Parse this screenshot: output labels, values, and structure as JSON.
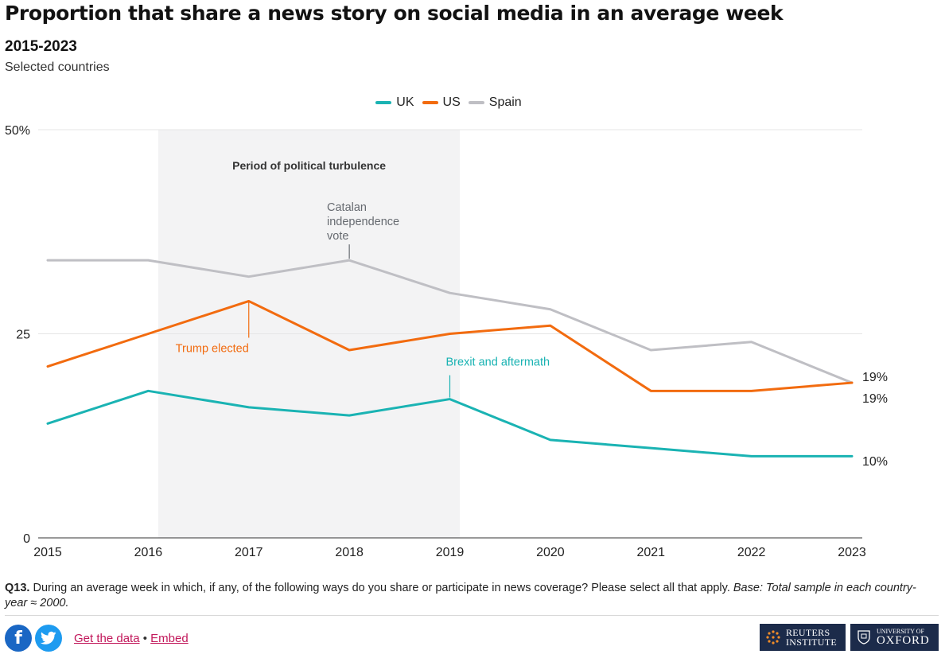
{
  "header": {
    "title": "Proportion that share a news story on social media in an average week",
    "subtitle": "2015-2023",
    "description": "Selected countries"
  },
  "chart_data": {
    "type": "line",
    "x": [
      "2015",
      "2016",
      "2017",
      "2018",
      "2019",
      "2020",
      "2021",
      "2022",
      "2023"
    ],
    "series": [
      {
        "name": "UK",
        "color": "#1ab3b3",
        "values": [
          14,
          18,
          16,
          15,
          17,
          12,
          11,
          10,
          10
        ]
      },
      {
        "name": "US",
        "color": "#f26b0f",
        "values": [
          21,
          25,
          29,
          23,
          25,
          26,
          18,
          18,
          19
        ]
      },
      {
        "name": "Spain",
        "color": "#bfbfc4",
        "values": [
          34,
          34,
          32,
          34,
          30,
          28,
          23,
          24,
          19
        ]
      }
    ],
    "ylim": [
      0,
      50
    ],
    "y_ticks": [
      {
        "value": 0,
        "label": "0"
      },
      {
        "value": 25,
        "label": "25"
      },
      {
        "value": 50,
        "label": "50%"
      }
    ],
    "end_labels": [
      {
        "series": "Spain",
        "label": "19%"
      },
      {
        "series": "US",
        "label": "19%"
      },
      {
        "series": "UK",
        "label": "10%"
      }
    ],
    "shaded_period": {
      "x_start": 2016.1,
      "x_end": 2019.1,
      "label": "Period of political turbulence"
    },
    "annotations": [
      {
        "series": "Spain",
        "x": "2018",
        "lines": [
          "Catalan",
          "independence",
          "vote"
        ],
        "color": "#666a70"
      },
      {
        "series": "US",
        "x": "2017",
        "lines": [
          "Trump elected"
        ],
        "color": "#f26b0f"
      },
      {
        "series": "UK",
        "x": "2019",
        "lines": [
          "Brexit and aftermath"
        ],
        "color": "#1ab3b3"
      }
    ],
    "grid": true,
    "legend_position": "top-center"
  },
  "footnote": {
    "label": "Q13.",
    "text": " During an average week in which, if any, of the following ways do you share or participate in news coverage? Please select all that apply. ",
    "base": "Base: Total sample in each country-year ≈ 2000."
  },
  "footer": {
    "facebook_glyph": "f",
    "get_data_label": "Get the data",
    "separator": " • ",
    "embed_label": "Embed",
    "logo_reuters": [
      "REUTERS",
      "INSTITUTE"
    ],
    "logo_oxford": [
      "UNIVERSITY OF",
      "OXFORD"
    ]
  }
}
